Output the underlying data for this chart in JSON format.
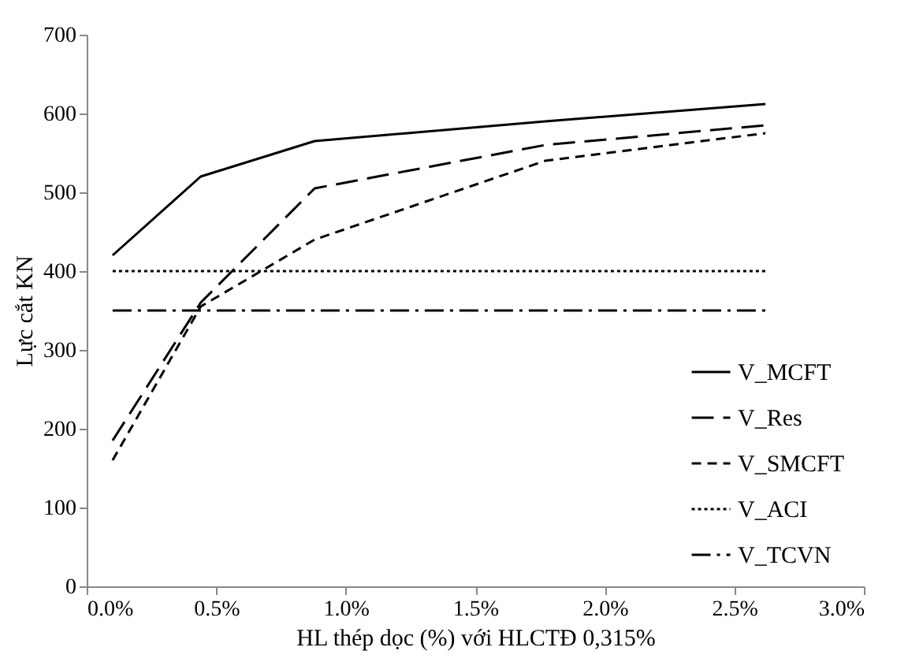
{
  "chart_data": {
    "type": "line",
    "xlabel": "HL thép dọc (%) với HLCTĐ  0,315%",
    "ylabel": "Lực cắt KN",
    "x": [
      0.1,
      0.44,
      0.88,
      1.77,
      2.62
    ],
    "series": [
      {
        "name": "V_MCFT",
        "color": "#000000",
        "line_style": "solid",
        "values": [
          420,
          520,
          565,
          590,
          612
        ]
      },
      {
        "name": "V_Res",
        "color": "#000000",
        "line_style": "longdash",
        "values": [
          185,
          360,
          505,
          560,
          585
        ]
      },
      {
        "name": "V_SMCFT",
        "color": "#000000",
        "line_style": "dashed",
        "values": [
          160,
          355,
          440,
          540,
          575
        ]
      },
      {
        "name": "V_ACI",
        "color": "#000000",
        "line_style": "dotted",
        "values": [
          400,
          400,
          400,
          400,
          400
        ]
      },
      {
        "name": "V_TCVN",
        "color": "#000000",
        "line_style": "dashdot",
        "values": [
          350,
          350,
          350,
          350,
          350
        ]
      }
    ],
    "xlim": [
      0,
      3
    ],
    "xticks": [
      {
        "value": 0,
        "label": "0.0%"
      },
      {
        "value": 0.5,
        "label": "0.5%"
      },
      {
        "value": 1,
        "label": "1.0%"
      },
      {
        "value": 1.5,
        "label": "1.5%"
      },
      {
        "value": 2,
        "label": "2.0%"
      },
      {
        "value": 2.5,
        "label": "2.5%"
      },
      {
        "value": 3,
        "label": "3.0%"
      }
    ],
    "ylim": [
      0,
      700
    ],
    "yticks": [
      0,
      100,
      200,
      300,
      400,
      500,
      600,
      700
    ],
    "grid": false,
    "legend": "bottom right",
    "marker": "none"
  }
}
